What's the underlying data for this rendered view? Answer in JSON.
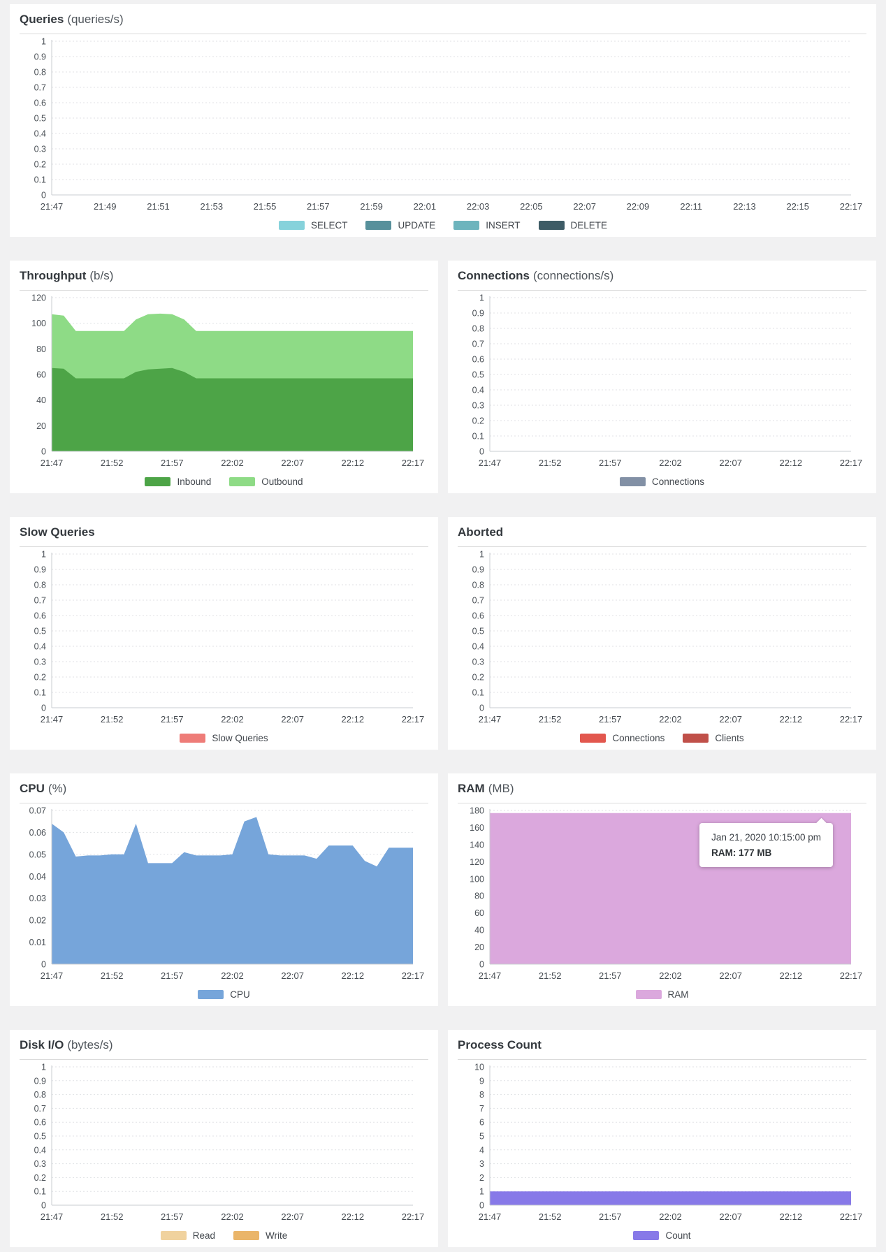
{
  "page": {
    "background_color": "#f1f1f2",
    "card_background": "#ffffff",
    "time_range": {
      "start": "21:47",
      "end": "22:17"
    }
  },
  "tooltip": {
    "line1": "Jan 21, 2020 10:15:00 pm",
    "line2": "RAM: 177 MB"
  },
  "charts": [
    {
      "title": "Queries",
      "unit": "(queries/s)",
      "chart_data": {
        "type": "area",
        "x_labels": [
          "21:47",
          "21:49",
          "21:51",
          "21:53",
          "21:55",
          "21:57",
          "21:59",
          "22:01",
          "22:03",
          "22:05",
          "22:07",
          "22:09",
          "22:11",
          "22:13",
          "22:15",
          "22:17"
        ],
        "y_min": 0,
        "y_max": 1,
        "y_step": 0.1,
        "grid": "dotted-horizontal",
        "legend_position": "bottom",
        "series": [
          {
            "name": "SELECT",
            "color": "#86d2db",
            "flat": 0
          },
          {
            "name": "UPDATE",
            "color": "#57909b",
            "flat": 0
          },
          {
            "name": "INSERT",
            "color": "#6db4bd",
            "flat": 0
          },
          {
            "name": "DELETE",
            "color": "#3e5c66",
            "flat": 0
          }
        ]
      }
    },
    {
      "title": "Throughput",
      "unit": "(b/s)",
      "chart_data": {
        "type": "area",
        "stacked": true,
        "x_labels": [
          "21:47",
          "21:52",
          "21:57",
          "22:02",
          "22:07",
          "22:12",
          "22:17"
        ],
        "x_points_interval": "1 minute from 21:47 to 22:17",
        "y_min": 0,
        "y_max": 120,
        "y_step": 20,
        "grid": "dotted-horizontal",
        "legend_position": "bottom",
        "series": [
          {
            "name": "Inbound",
            "color": "#4da447",
            "values": [
              65,
              64.5,
              57,
              57,
              57,
              57,
              57,
              62,
              64,
              64.5,
              65,
              62,
              57,
              57,
              57,
              57,
              57,
              57,
              57,
              57,
              57,
              57,
              57,
              57,
              57,
              57,
              57,
              57,
              57,
              57,
              57
            ]
          },
          {
            "name": "Outbound",
            "color": "#8edb86",
            "values": [
              42,
              41.5,
              37,
              37,
              37,
              37,
              37,
              41,
              43,
              43,
              42,
              41,
              37,
              37,
              37,
              37,
              37,
              37,
              37,
              37,
              37,
              37,
              37,
              37,
              37,
              37,
              37,
              37,
              37,
              37,
              37
            ]
          }
        ]
      }
    },
    {
      "title": "Connections",
      "unit": "(connections/s)",
      "chart_data": {
        "type": "area",
        "x_labels": [
          "21:47",
          "21:52",
          "21:57",
          "22:02",
          "22:07",
          "22:12",
          "22:17"
        ],
        "y_min": 0,
        "y_max": 1,
        "y_step": 0.1,
        "grid": "dotted-horizontal",
        "legend_position": "bottom",
        "series": [
          {
            "name": "Connections",
            "color": "#8290a5",
            "flat": 0
          }
        ]
      }
    },
    {
      "title": "Slow Queries",
      "unit": "",
      "chart_data": {
        "type": "area",
        "x_labels": [
          "21:47",
          "21:52",
          "21:57",
          "22:02",
          "22:07",
          "22:12",
          "22:17"
        ],
        "y_min": 0,
        "y_max": 1,
        "y_step": 0.1,
        "grid": "dotted-horizontal",
        "legend_position": "bottom",
        "series": [
          {
            "name": "Slow Queries",
            "color": "#ee7c78",
            "flat": 0
          }
        ]
      }
    },
    {
      "title": "Aborted",
      "unit": "",
      "chart_data": {
        "type": "area",
        "x_labels": [
          "21:47",
          "21:52",
          "21:57",
          "22:02",
          "22:07",
          "22:12",
          "22:17"
        ],
        "y_min": 0,
        "y_max": 1,
        "y_step": 0.1,
        "grid": "dotted-horizontal",
        "legend_position": "bottom",
        "series": [
          {
            "name": "Connections",
            "color": "#e2574e",
            "flat": 0
          },
          {
            "name": "Clients",
            "color": "#c05049",
            "flat": 0
          }
        ]
      }
    },
    {
      "title": "CPU",
      "unit": "(%)",
      "chart_data": {
        "type": "area",
        "x_labels": [
          "21:47",
          "21:52",
          "21:57",
          "22:02",
          "22:07",
          "22:12",
          "22:17"
        ],
        "x_points_interval": "1 minute from 21:47 to 22:17",
        "y_min": 0,
        "y_max": 0.07,
        "y_step": 0.01,
        "grid": "dotted-horizontal",
        "legend_position": "bottom",
        "series": [
          {
            "name": "CPU",
            "color": "#76a5da",
            "values": [
              0.064,
              0.06,
              0.049,
              0.0495,
              0.0495,
              0.05,
              0.05,
              0.064,
              0.046,
              0.046,
              0.046,
              0.051,
              0.0495,
              0.0495,
              0.0495,
              0.05,
              0.065,
              0.067,
              0.05,
              0.0495,
              0.0495,
              0.0495,
              0.048,
              0.054,
              0.054,
              0.054,
              0.047,
              0.0445,
              0.053,
              0.053,
              0.053
            ]
          }
        ]
      }
    },
    {
      "title": "RAM",
      "unit": "(MB)",
      "chart_data": {
        "type": "area",
        "x_labels": [
          "21:47",
          "21:52",
          "21:57",
          "22:02",
          "22:07",
          "22:12",
          "22:17"
        ],
        "y_min": 0,
        "y_max": 180,
        "y_step": 20,
        "grid": "dotted-horizontal",
        "legend_position": "bottom",
        "series": [
          {
            "name": "RAM",
            "color": "#dba8dd",
            "flat": 177
          }
        ]
      }
    },
    {
      "title": "Disk I/O",
      "unit": "(bytes/s)",
      "chart_data": {
        "type": "area",
        "x_labels": [
          "21:47",
          "21:52",
          "21:57",
          "22:02",
          "22:07",
          "22:12",
          "22:17"
        ],
        "y_min": 0,
        "y_max": 1,
        "y_step": 0.1,
        "grid": "dotted-horizontal",
        "legend_position": "bottom",
        "series": [
          {
            "name": "Read",
            "color": "#f0d29e",
            "flat": 0
          },
          {
            "name": "Write",
            "color": "#eab569",
            "flat": 0
          }
        ]
      }
    },
    {
      "title": "Process Count",
      "unit": "",
      "chart_data": {
        "type": "area",
        "x_labels": [
          "21:47",
          "21:52",
          "21:57",
          "22:02",
          "22:07",
          "22:12",
          "22:17"
        ],
        "y_min": 0,
        "y_max": 10,
        "y_step": 1,
        "grid": "dotted-horizontal",
        "legend_position": "bottom",
        "series": [
          {
            "name": "Count",
            "color": "#8779e8",
            "flat": 1
          }
        ]
      }
    }
  ]
}
